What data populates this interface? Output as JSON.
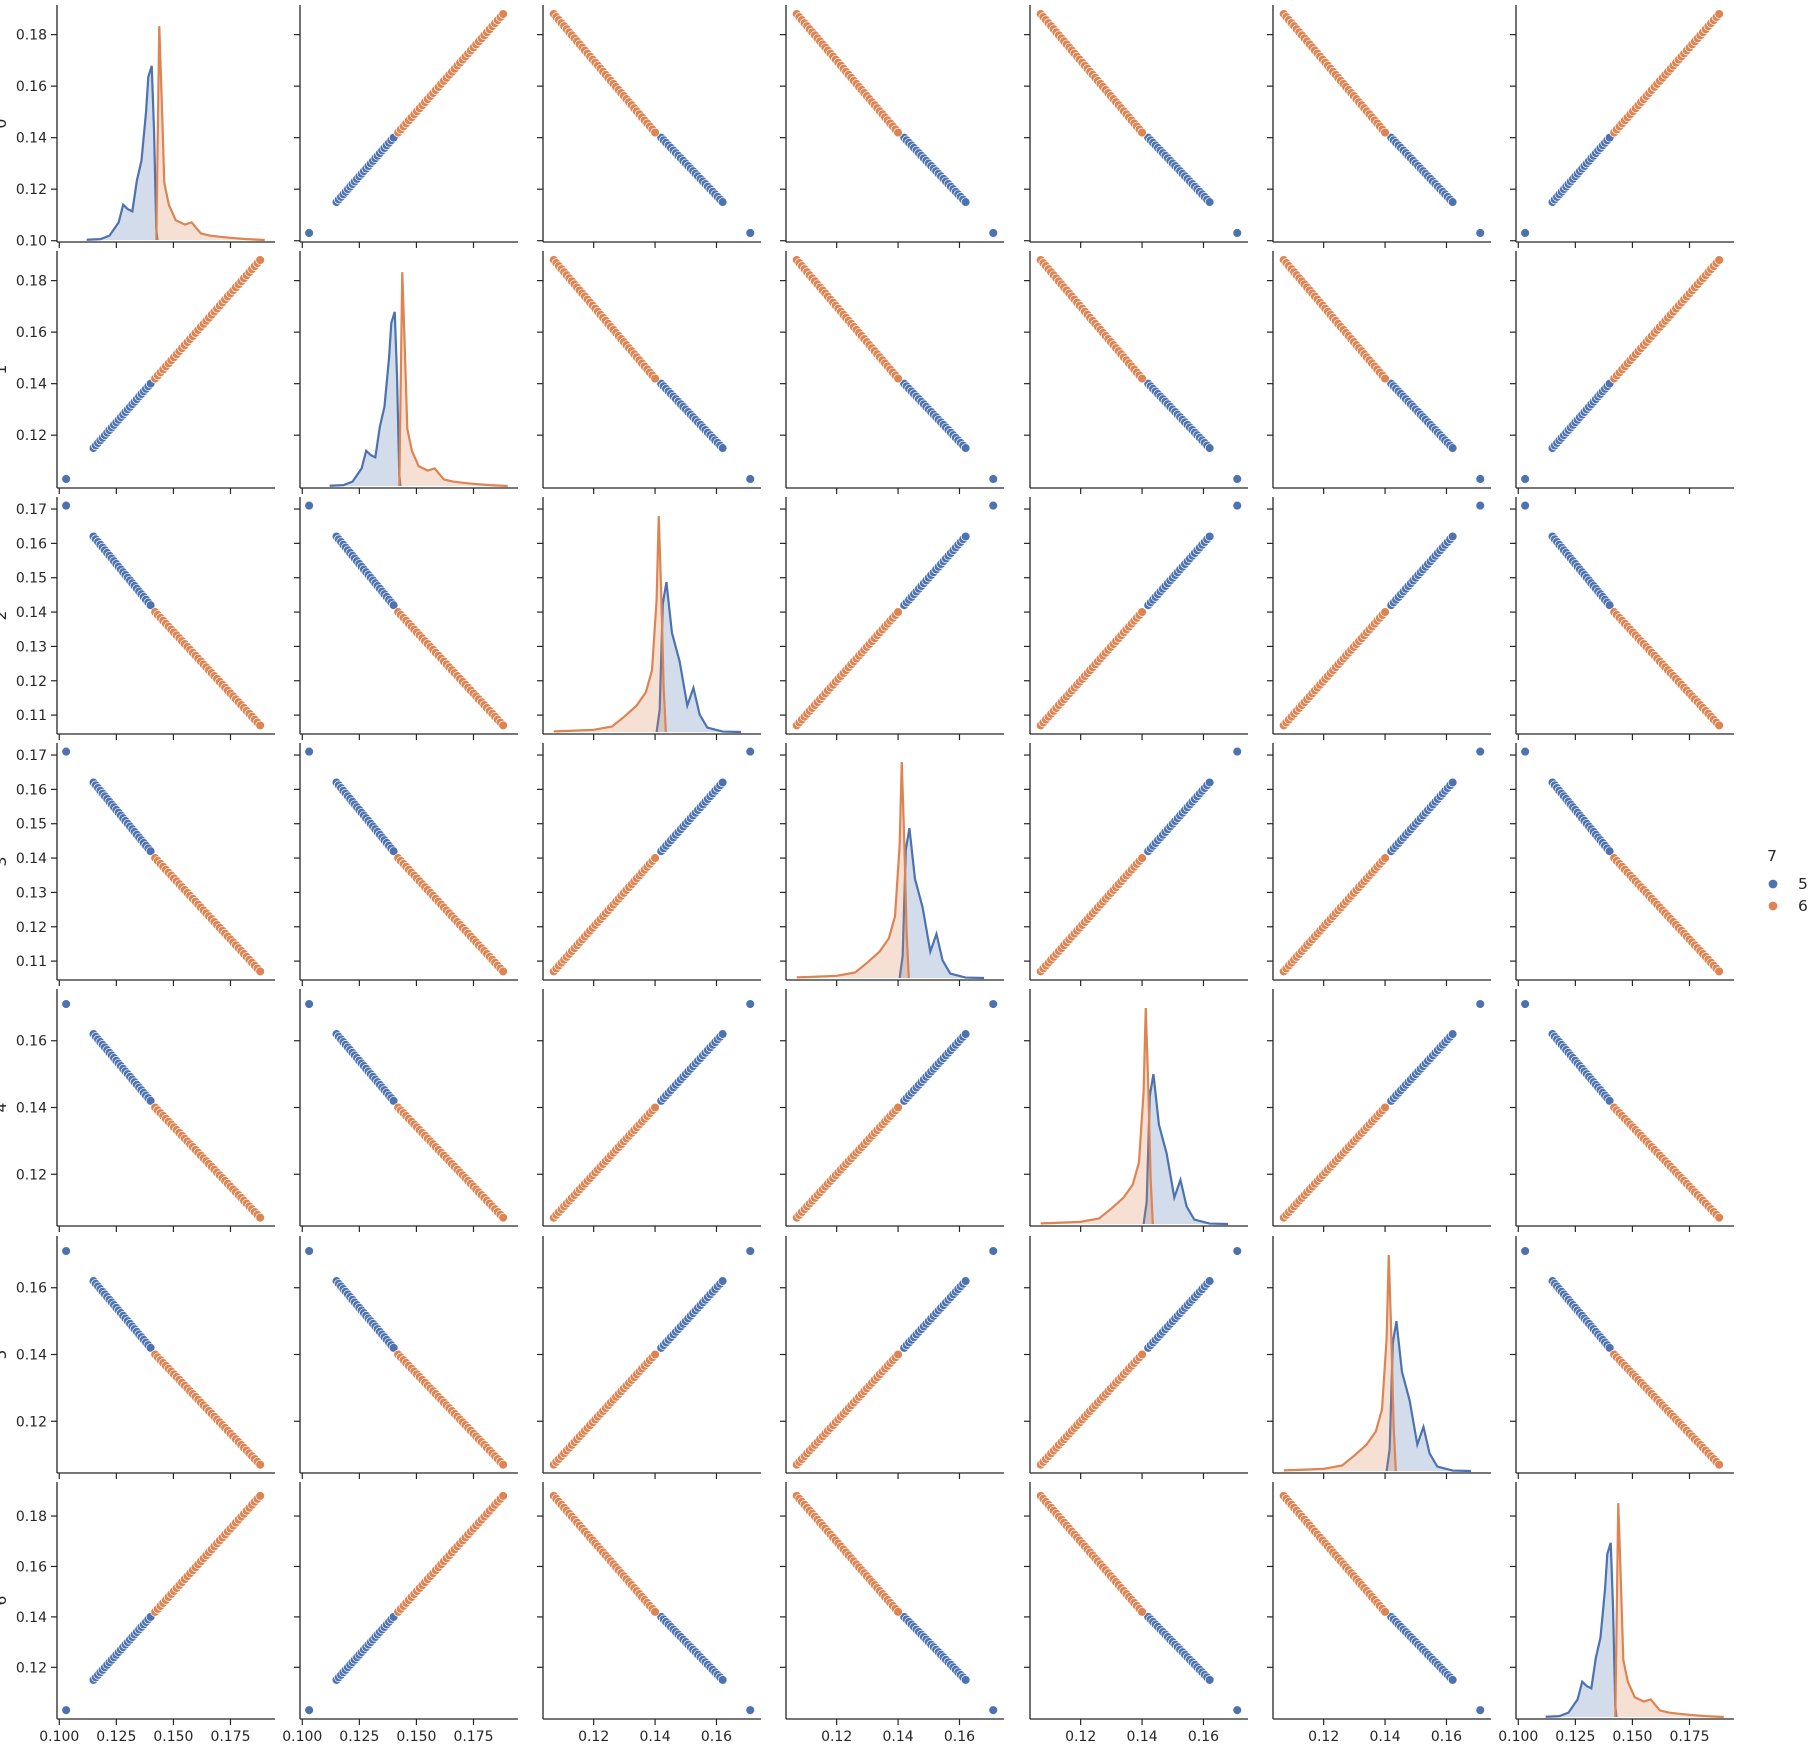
{
  "chart_data": {
    "type": "scatter",
    "variables": [
      "0",
      "1",
      "2",
      "3",
      "4",
      "5",
      "6"
    ],
    "hue_title": "7",
    "hue_levels": [
      {
        "label": "5",
        "color": "#4c72b0"
      },
      {
        "label": "6",
        "color": "#dd8452"
      }
    ],
    "legend_placement": "right",
    "grid": false,
    "diagonal": "kde",
    "groups": {
      "pos": {
        "blue_range": [
          0.115,
          0.14
        ],
        "orange_range": [
          0.142,
          0.188
        ],
        "outlier": 0.103
      },
      "neg": {
        "blue_range": [
          0.142,
          0.162
        ],
        "orange_range": [
          0.107,
          0.14
        ],
        "outlier": 0.171
      }
    },
    "variable_group": [
      "pos",
      "pos",
      "neg",
      "neg",
      "neg",
      "neg",
      "pos"
    ],
    "axes": [
      {
        "xlim": [
          0.099,
          0.1945
        ],
        "ylim": [
          0.0995,
          0.1915
        ],
        "xticks": [
          "0.100",
          "0.125",
          "0.150",
          "0.175"
        ],
        "xtick_values": [
          0.1,
          0.125,
          0.15,
          0.175
        ],
        "yticks": [
          "0.10",
          "0.12",
          "0.14",
          "0.16",
          "0.18"
        ],
        "ytick_values": [
          0.1,
          0.12,
          0.14,
          0.16,
          0.18
        ]
      },
      {
        "xlim": [
          0.099,
          0.1945
        ],
        "ylim": [
          0.0995,
          0.1915
        ],
        "xticks": [
          "0.100",
          "0.125",
          "0.150",
          "0.175"
        ],
        "xtick_values": [
          0.1,
          0.125,
          0.15,
          0.175
        ],
        "yticks": [
          "0.12",
          "0.14",
          "0.16",
          "0.18"
        ],
        "ytick_values": [
          0.12,
          0.14,
          0.16,
          0.18
        ]
      },
      {
        "xlim": [
          0.1035,
          0.1745
        ],
        "ylim": [
          0.1045,
          0.1735
        ],
        "xticks": [
          "0.12",
          "0.14",
          "0.16"
        ],
        "xtick_values": [
          0.12,
          0.14,
          0.16
        ],
        "yticks": [
          "0.11",
          "0.12",
          "0.13",
          "0.14",
          "0.15",
          "0.16",
          "0.17"
        ],
        "ytick_values": [
          0.11,
          0.12,
          0.13,
          0.14,
          0.15,
          0.16,
          0.17
        ]
      },
      {
        "xlim": [
          0.1035,
          0.1745
        ],
        "ylim": [
          0.1045,
          0.1735
        ],
        "xticks": [
          "0.12",
          "0.14",
          "0.16"
        ],
        "xtick_values": [
          0.12,
          0.14,
          0.16
        ],
        "yticks": [
          "0.11",
          "0.12",
          "0.13",
          "0.14",
          "0.15",
          "0.16",
          "0.17"
        ],
        "ytick_values": [
          0.11,
          0.12,
          0.13,
          0.14,
          0.15,
          0.16,
          0.17
        ]
      },
      {
        "xlim": [
          0.1035,
          0.1745
        ],
        "ylim": [
          0.1045,
          0.1755
        ],
        "xticks": [
          "0.12",
          "0.14",
          "0.16"
        ],
        "xtick_values": [
          0.12,
          0.14,
          0.16
        ],
        "yticks": [
          "0.12",
          "0.14",
          "0.16"
        ],
        "ytick_values": [
          0.12,
          0.14,
          0.16
        ]
      },
      {
        "xlim": [
          0.1035,
          0.1745
        ],
        "ylim": [
          0.1045,
          0.1755
        ],
        "xticks": [
          "0.12",
          "0.14",
          "0.16"
        ],
        "xtick_values": [
          0.12,
          0.14,
          0.16
        ],
        "yticks": [
          "0.12",
          "0.14",
          "0.16"
        ],
        "ytick_values": [
          0.12,
          0.14,
          0.16
        ]
      },
      {
        "xlim": [
          0.099,
          0.1945
        ],
        "ylim": [
          0.0995,
          0.1935
        ],
        "xticks": [
          "0.100",
          "0.125",
          "0.150",
          "0.175"
        ],
        "xtick_values": [
          0.1,
          0.125,
          0.15,
          0.175
        ],
        "yticks": [
          "0.12",
          "0.14",
          "0.16",
          "0.18"
        ],
        "ytick_values": [
          0.12,
          0.14,
          0.16,
          0.18
        ]
      }
    ],
    "kde": {
      "pos": {
        "blue": [
          [
            0.112,
            0.001
          ],
          [
            0.118,
            0.004
          ],
          [
            0.122,
            0.02
          ],
          [
            0.126,
            0.08
          ],
          [
            0.128,
            0.16
          ],
          [
            0.13,
            0.14
          ],
          [
            0.132,
            0.13
          ],
          [
            0.134,
            0.27
          ],
          [
            0.136,
            0.36
          ],
          [
            0.138,
            0.58
          ],
          [
            0.139,
            0.74
          ],
          [
            0.1405,
            0.79
          ],
          [
            0.1415,
            0.5
          ],
          [
            0.1425,
            0.05
          ],
          [
            0.143,
            0.0
          ]
        ],
        "orange": [
          [
            0.1425,
            0.0
          ],
          [
            0.1432,
            0.52
          ],
          [
            0.1438,
            0.97
          ],
          [
            0.1448,
            0.66
          ],
          [
            0.146,
            0.26
          ],
          [
            0.148,
            0.16
          ],
          [
            0.151,
            0.09
          ],
          [
            0.155,
            0.07
          ],
          [
            0.158,
            0.08
          ],
          [
            0.162,
            0.03
          ],
          [
            0.166,
            0.02
          ],
          [
            0.17,
            0.015
          ],
          [
            0.175,
            0.01
          ],
          [
            0.182,
            0.004
          ],
          [
            0.19,
            0.0
          ]
        ]
      },
      "neg": {
        "blue": [
          [
            0.1405,
            0.0
          ],
          [
            0.1415,
            0.1
          ],
          [
            0.1425,
            0.58
          ],
          [
            0.1437,
            0.68
          ],
          [
            0.1455,
            0.45
          ],
          [
            0.148,
            0.32
          ],
          [
            0.1505,
            0.12
          ],
          [
            0.1525,
            0.2
          ],
          [
            0.1545,
            0.08
          ],
          [
            0.157,
            0.02
          ],
          [
            0.162,
            0.002
          ],
          [
            0.168,
            0.0
          ]
        ],
        "orange": [
          [
            0.107,
            0.003
          ],
          [
            0.112,
            0.005
          ],
          [
            0.12,
            0.01
          ],
          [
            0.126,
            0.025
          ],
          [
            0.13,
            0.07
          ],
          [
            0.134,
            0.12
          ],
          [
            0.137,
            0.18
          ],
          [
            0.139,
            0.28
          ],
          [
            0.1405,
            0.6
          ],
          [
            0.1412,
            0.98
          ],
          [
            0.142,
            0.63
          ],
          [
            0.1428,
            0.2
          ],
          [
            0.1435,
            0.0
          ]
        ]
      },
      "ymax": 1.0
    }
  }
}
